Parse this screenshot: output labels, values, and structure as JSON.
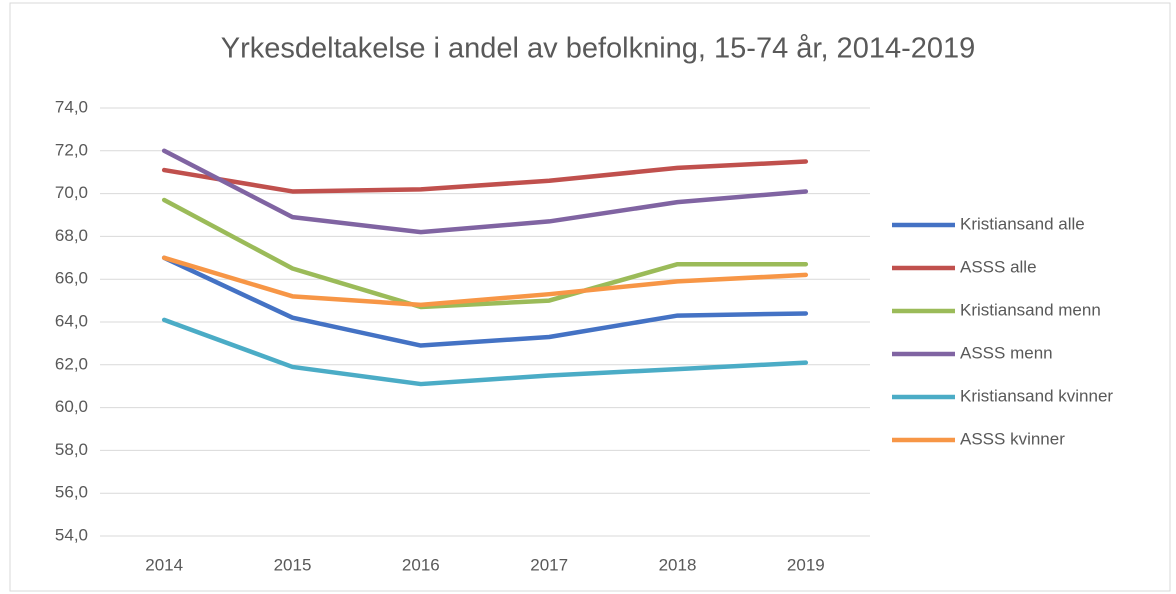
{
  "chart_data": {
    "type": "line",
    "title": "Yrkesdeltakelse i andel av befolkning, 15-74 år, 2014-2019",
    "categories": [
      "2014",
      "2015",
      "2016",
      "2017",
      "2018",
      "2019"
    ],
    "series": [
      {
        "name": "Kristiansand alle",
        "color": "#4472c4",
        "values": [
          67.0,
          64.2,
          62.9,
          63.3,
          64.3,
          64.4
        ]
      },
      {
        "name": "ASSS alle",
        "color": "#c0504d",
        "values": [
          71.1,
          70.1,
          70.2,
          70.6,
          71.2,
          71.5
        ]
      },
      {
        "name": "Kristiansand menn",
        "color": "#9bbb59",
        "values": [
          69.7,
          66.5,
          64.7,
          65.0,
          66.7,
          66.7
        ]
      },
      {
        "name": "ASSS menn",
        "color": "#8064a2",
        "values": [
          72.0,
          68.9,
          68.2,
          68.7,
          69.6,
          70.1
        ]
      },
      {
        "name": "Kristiansand kvinner",
        "color": "#4bacc6",
        "values": [
          64.1,
          61.9,
          61.1,
          61.5,
          61.8,
          62.1
        ]
      },
      {
        "name": "ASSS kvinner",
        "color": "#f79646",
        "values": [
          67.0,
          65.2,
          64.8,
          65.3,
          65.9,
          66.2
        ]
      }
    ],
    "ylim": [
      54,
      74
    ],
    "yticks": [
      {
        "value": 54,
        "label": "54,0"
      },
      {
        "value": 56,
        "label": "56,0"
      },
      {
        "value": 58,
        "label": "58,0"
      },
      {
        "value": 60,
        "label": "60,0"
      },
      {
        "value": 62,
        "label": "62,0"
      },
      {
        "value": 64,
        "label": "64,0"
      },
      {
        "value": 66,
        "label": "66,0"
      },
      {
        "value": 68,
        "label": "68,0"
      },
      {
        "value": 70,
        "label": "70,0"
      },
      {
        "value": 72,
        "label": "72,0"
      },
      {
        "value": 74,
        "label": "74,0"
      }
    ],
    "grid": true,
    "legend": "right"
  }
}
